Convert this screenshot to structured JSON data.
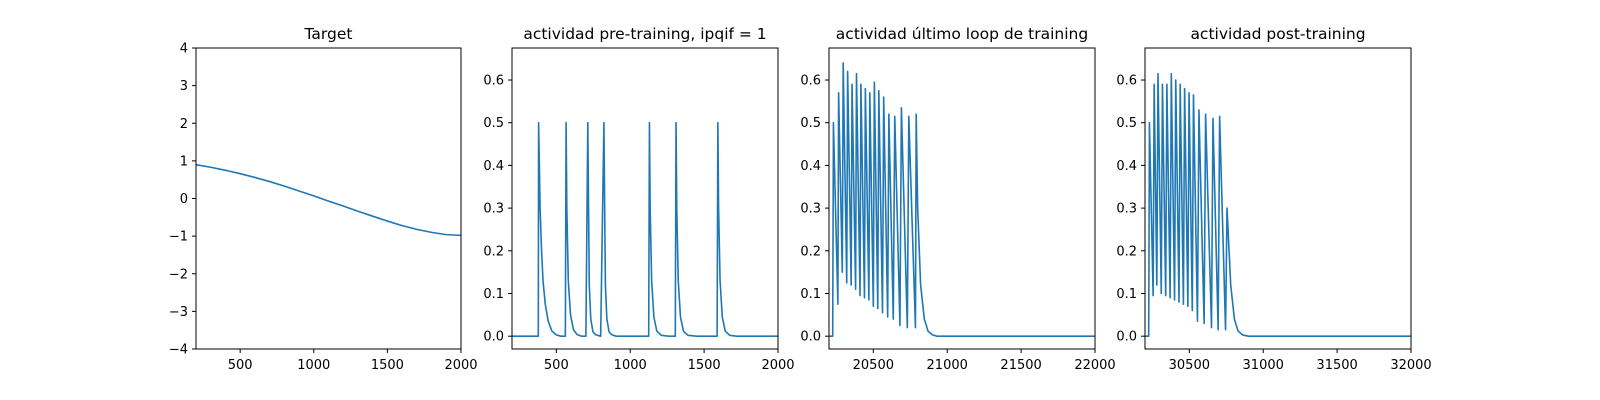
{
  "chart_data": [
    {
      "type": "line",
      "title": "Target",
      "xlabel": "",
      "ylabel": "",
      "xlim": [
        200,
        2000
      ],
      "ylim": [
        -4,
        4
      ],
      "xticks": [
        500,
        1000,
        1500,
        2000
      ],
      "yticks": [
        -4,
        -3,
        -2,
        -1,
        0,
        1,
        2,
        3,
        4
      ],
      "line_color": "#1f77b4",
      "grid": false,
      "series": [
        {
          "x": [
            200,
            300,
            400,
            500,
            600,
            700,
            800,
            900,
            1000,
            1100,
            1200,
            1300,
            1400,
            1500,
            1600,
            1700,
            1800,
            1900,
            2000
          ],
          "y": [
            0.9,
            0.83,
            0.75,
            0.66,
            0.56,
            0.45,
            0.33,
            0.2,
            0.07,
            -0.07,
            -0.2,
            -0.34,
            -0.47,
            -0.6,
            -0.72,
            -0.82,
            -0.9,
            -0.96,
            -0.98
          ]
        }
      ]
    },
    {
      "type": "line",
      "title": "actividad pre-training, ipqif = 1",
      "xlabel": "",
      "ylabel": "",
      "xlim": [
        200,
        2000
      ],
      "ylim": [
        -0.03,
        0.675
      ],
      "xticks": [
        500,
        1000,
        1500,
        2000
      ],
      "yticks": [
        0.0,
        0.1,
        0.2,
        0.3,
        0.4,
        0.5,
        0.6
      ],
      "line_color": "#1f77b4",
      "grid": false,
      "series": [
        {
          "x": [
            200,
            378,
            380,
            385,
            390,
            400,
            410,
            425,
            445,
            470,
            500,
            530,
            561,
            566,
            571,
            581,
            596,
            616,
            640,
            670,
            700,
            713,
            718,
            723,
            733,
            748,
            768,
            800,
            822,
            827,
            832,
            842,
            857,
            877,
            905,
            940,
            1000,
            1060,
            1105,
            1125,
            1130,
            1135,
            1145,
            1160,
            1180,
            1210,
            1260,
            1305,
            1310,
            1315,
            1325,
            1340,
            1360,
            1390,
            1450,
            1520,
            1588,
            1593,
            1598,
            1608,
            1623,
            1643,
            1673,
            1720,
            1800,
            2000
          ],
          "y": [
            0,
            0,
            0.5,
            0.4,
            0.3,
            0.2,
            0.13,
            0.075,
            0.035,
            0.012,
            0.003,
            0,
            0,
            0.5,
            0.3,
            0.13,
            0.05,
            0.015,
            0.004,
            0,
            0,
            0.5,
            0.3,
            0.12,
            0.04,
            0.01,
            0.003,
            0,
            0.5,
            0.3,
            0.12,
            0.04,
            0.01,
            0.003,
            0,
            0,
            0,
            0,
            0,
            0,
            0.5,
            0.3,
            0.13,
            0.045,
            0.012,
            0.002,
            0,
            0,
            0.5,
            0.3,
            0.13,
            0.045,
            0.012,
            0.002,
            0,
            0,
            0,
            0.5,
            0.3,
            0.13,
            0.045,
            0.012,
            0.002,
            0,
            0,
            0
          ]
        }
      ]
    },
    {
      "type": "line",
      "title": "actividad último loop de training",
      "xlabel": "",
      "ylabel": "",
      "xlim": [
        20200,
        22000
      ],
      "ylim": [
        -0.03,
        0.675
      ],
      "xticks": [
        20500,
        21000,
        21500,
        22000
      ],
      "yticks": [
        0.0,
        0.1,
        0.2,
        0.3,
        0.4,
        0.5,
        0.6
      ],
      "line_color": "#1f77b4",
      "grid": false,
      "series": [
        {
          "x": [
            20200,
            20225,
            20230,
            20260,
            20265,
            20290,
            20296,
            20320,
            20326,
            20350,
            20356,
            20380,
            20386,
            20410,
            20416,
            20440,
            20446,
            20470,
            20476,
            20500,
            20507,
            20530,
            20537,
            20562,
            20570,
            20597,
            20605,
            20635,
            20645,
            20680,
            20690,
            20730,
            20740,
            20785,
            20790,
            20800,
            20820,
            20845,
            20870,
            20900,
            20930,
            20950,
            21000,
            22000
          ],
          "y": [
            0,
            0,
            0.5,
            0.075,
            0.57,
            0.15,
            0.64,
            0.125,
            0.62,
            0.12,
            0.59,
            0.11,
            0.615,
            0.095,
            0.59,
            0.09,
            0.58,
            0.085,
            0.57,
            0.07,
            0.595,
            0.065,
            0.575,
            0.055,
            0.56,
            0.045,
            0.52,
            0.04,
            0.515,
            0.025,
            0.535,
            0.02,
            0.515,
            0.02,
            0.52,
            0.3,
            0.12,
            0.04,
            0.012,
            0.003,
            0,
            0,
            0,
            0
          ]
        }
      ]
    },
    {
      "type": "line",
      "title": "actividad post-training",
      "xlabel": "",
      "ylabel": "",
      "xlim": [
        30200,
        32000
      ],
      "ylim": [
        -0.03,
        0.675
      ],
      "xticks": [
        30500,
        31000,
        31500,
        32000
      ],
      "yticks": [
        0.0,
        0.1,
        0.2,
        0.3,
        0.4,
        0.5,
        0.6
      ],
      "line_color": "#1f77b4",
      "grid": false,
      "series": [
        {
          "x": [
            30200,
            30225,
            30230,
            30255,
            30262,
            30280,
            30288,
            30310,
            30318,
            30340,
            30348,
            30370,
            30378,
            30400,
            30408,
            30430,
            30438,
            30460,
            30468,
            30490,
            30498,
            30520,
            30528,
            30555,
            30565,
            30600,
            30610,
            30650,
            30660,
            30695,
            30705,
            30745,
            30755,
            30780,
            30805,
            30830,
            30860,
            30900,
            31000,
            32000
          ],
          "y": [
            0,
            0,
            0.5,
            0.095,
            0.59,
            0.12,
            0.615,
            0.1,
            0.59,
            0.095,
            0.59,
            0.09,
            0.615,
            0.085,
            0.6,
            0.08,
            0.59,
            0.075,
            0.58,
            0.07,
            0.57,
            0.06,
            0.565,
            0.035,
            0.53,
            0.03,
            0.52,
            0.02,
            0.51,
            0.015,
            0.515,
            0.015,
            0.3,
            0.12,
            0.04,
            0.012,
            0.003,
            0,
            0,
            0
          ]
        }
      ]
    }
  ]
}
